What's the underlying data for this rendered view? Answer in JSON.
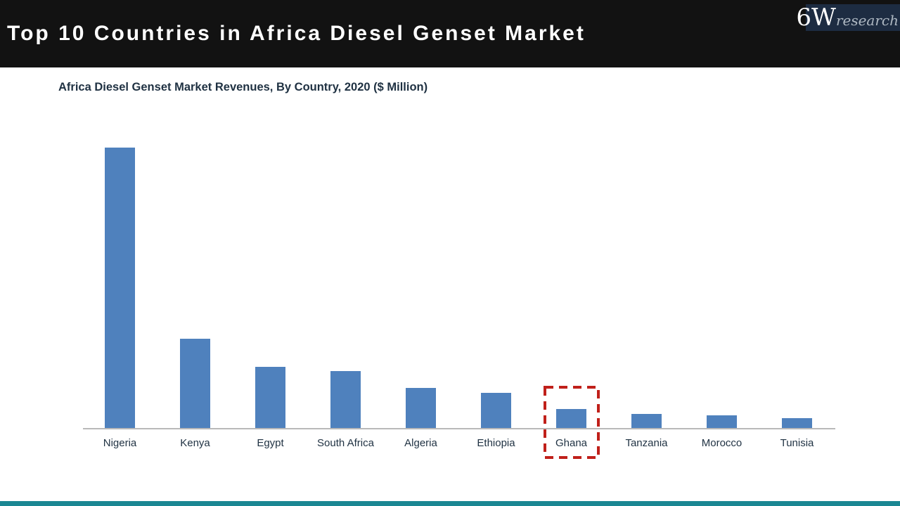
{
  "header": {
    "title": "Top 10 Countries in Africa Diesel Genset Market",
    "logo": {
      "mark": "6W",
      "suffix": "research"
    }
  },
  "chart": {
    "subtitle": "Africa Diesel Genset Market Revenues, By Country, 2020 ($ Million)",
    "highlight_country": "Ghana"
  },
  "chart_data": {
    "type": "bar",
    "title": "Africa Diesel Genset Market Revenues, By Country, 2020 ($ Million)",
    "categories": [
      "Nigeria",
      "Kenya",
      "Egypt",
      "South Africa",
      "Algeria",
      "Ethiopia",
      "Ghana",
      "Tanzania",
      "Morocco",
      "Tunisia"
    ],
    "values": [
      400,
      128,
      88,
      82,
      58,
      51,
      28,
      21,
      19,
      15
    ],
    "value_note": "No value axis, gridlines, or data labels are visible; values are relative estimates read from bar heights in pixels.",
    "xlabel": "",
    "ylabel": "",
    "grid": false,
    "legend": false,
    "annotations": [
      {
        "type": "highlight",
        "target": "Ghana",
        "style": "red dashed rectangle around bar and label"
      }
    ]
  },
  "colors": {
    "header_bg": "#121212",
    "title_text": "#ffffff",
    "logo_bg": "#1d2c42",
    "logo_mark": "#ffffff",
    "logo_suffix": "#aeb8c2",
    "subtitle_text": "#1f3142",
    "bar": "#4f81bd",
    "axis_line": "#b9b9b9",
    "label_text": "#1f3142",
    "highlight_red": "#c0201a",
    "footer_teal": "#1b8793"
  }
}
